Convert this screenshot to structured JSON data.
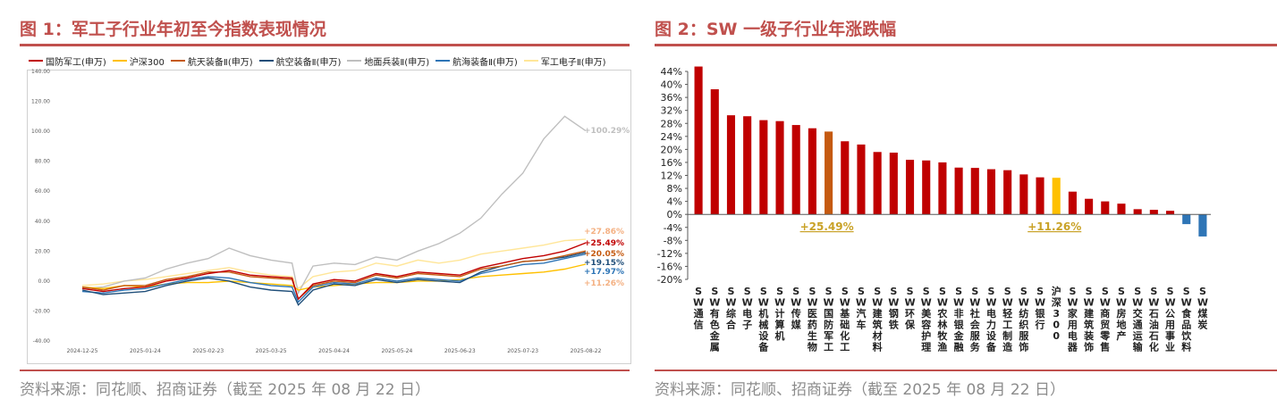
{
  "colors": {
    "accent": "#c0504d",
    "source_text": "#8c8c8c"
  },
  "left_panel": {
    "title": "图 1：军工子行业年初至今指数表现情况",
    "source": "资料来源：同花顺、招商证券（截至 2025 年 08 月 22 日）"
  },
  "right_panel": {
    "title": "图 2：SW 一级子行业年涨跌幅",
    "source": "资料来源：同花顺、招商证券（截至 2025 年 08 月 22 日）"
  },
  "chart_data": [
    {
      "type": "line",
      "title": "",
      "xlabel": "",
      "ylabel": "",
      "ylim": [
        -40,
        140
      ],
      "y_ticks": [
        -40,
        -20,
        0,
        20,
        40,
        60,
        80,
        100,
        120,
        140
      ],
      "y_tick_labels": [
        "-40.00",
        "-20.00",
        "0.00",
        "20.00",
        "40.00",
        "60.00",
        "80.00",
        "100.00",
        "120.00",
        "140.00"
      ],
      "x_ticks": [
        "2024-12-25",
        "2025-01-24",
        "2025-02-23",
        "2025-03-25",
        "2025-04-24",
        "2025-05-24",
        "2025-06-23",
        "2025-07-23",
        "2025-08-22"
      ],
      "legend_position": "top",
      "x": [
        "2024-12-25",
        "2025-01-04",
        "2025-01-14",
        "2025-01-24",
        "2025-02-03",
        "2025-02-13",
        "2025-02-23",
        "2025-03-05",
        "2025-03-15",
        "2025-03-25",
        "2025-04-04",
        "2025-04-07",
        "2025-04-14",
        "2025-04-24",
        "2025-05-04",
        "2025-05-14",
        "2025-05-24",
        "2025-06-03",
        "2025-06-13",
        "2025-06-23",
        "2025-07-03",
        "2025-07-13",
        "2025-07-23",
        "2025-08-02",
        "2025-08-12",
        "2025-08-22"
      ],
      "series": [
        {
          "name": "国防军工(申万)",
          "color": "#c00000",
          "end_label": "+25.49%",
          "values": [
            -5,
            -7,
            -5,
            -4,
            0,
            2,
            5,
            7,
            4,
            3,
            2,
            -12,
            -2,
            1,
            0,
            5,
            3,
            6,
            5,
            4,
            9,
            12,
            15,
            17,
            20,
            25.49
          ]
        },
        {
          "name": "沪深300",
          "color": "#ffc000",
          "end_label": "+11.26%",
          "values": [
            -4,
            -5,
            -3,
            -4,
            -2,
            -1,
            -1,
            0,
            -1,
            -2,
            -3,
            -6,
            -4,
            -3,
            -2,
            -1,
            -1,
            0,
            0,
            1,
            3,
            4,
            5,
            6,
            8,
            11.26
          ]
        },
        {
          "name": "航天装备Ⅱ(申万)",
          "color": "#c55a11",
          "end_label": "+20.05%",
          "values": [
            -4,
            -6,
            -3,
            -3,
            1,
            3,
            6,
            6,
            3,
            2,
            1,
            -12,
            -3,
            0,
            -1,
            4,
            2,
            5,
            4,
            3,
            8,
            10,
            13,
            14,
            17,
            20.05
          ]
        },
        {
          "name": "航空装备Ⅱ(申万)",
          "color": "#1f4e79",
          "end_label": "+19.15%",
          "values": [
            -6,
            -9,
            -8,
            -7,
            -3,
            0,
            2,
            0,
            -4,
            -6,
            -7,
            -16,
            -6,
            -2,
            -3,
            1,
            -1,
            1,
            0,
            -1,
            6,
            10,
            13,
            14,
            16,
            19.15
          ]
        },
        {
          "name": "地面兵装Ⅱ(申万)",
          "color": "#bfbfbf",
          "end_label": "+100.29%",
          "values": [
            -5,
            -4,
            0,
            2,
            8,
            12,
            15,
            22,
            17,
            14,
            12,
            -8,
            10,
            12,
            11,
            16,
            14,
            20,
            25,
            32,
            42,
            58,
            72,
            95,
            110,
            100.29
          ]
        },
        {
          "name": "航海装备Ⅱ(申万)",
          "color": "#2e75b6",
          "end_label": "+17.97%",
          "values": [
            -7,
            -8,
            -6,
            -5,
            -2,
            1,
            3,
            2,
            -1,
            -3,
            -4,
            -14,
            -4,
            -1,
            -2,
            2,
            0,
            2,
            1,
            0,
            5,
            8,
            11,
            12,
            15,
            17.97
          ]
        },
        {
          "name": "军工电子Ⅱ(申万)",
          "color": "#ffe699",
          "end_label": "+27.86%",
          "values": [
            -3,
            -2,
            0,
            1,
            3,
            5,
            7,
            9,
            6,
            4,
            3,
            -5,
            3,
            6,
            7,
            12,
            10,
            14,
            12,
            14,
            18,
            20,
            22,
            24,
            27,
            27.86
          ]
        }
      ]
    },
    {
      "type": "bar",
      "title": "",
      "xlabel": "",
      "ylabel": "",
      "ylim": [
        -20,
        44
      ],
      "y_ticks": [
        -20,
        -16,
        -12,
        -8,
        -4,
        0,
        4,
        8,
        12,
        16,
        20,
        24,
        28,
        32,
        36,
        40,
        44
      ],
      "y_tick_labels": [
        "-20%",
        "-16%",
        "-12%",
        "-8%",
        "-4%",
        "0%",
        "4%",
        "8%",
        "12%",
        "16%",
        "20%",
        "24%",
        "28%",
        "32%",
        "36%",
        "40%",
        "44%"
      ],
      "categories": [
        "SW通信",
        "SW有色金属",
        "SW综合",
        "SW电子",
        "SW机械设备",
        "SW计算机",
        "SW传媒",
        "SW医药生物",
        "SW国防军工",
        "SW基础化工",
        "SW汽车",
        "SW建筑材料",
        "SW钢铁",
        "SW环保",
        "SW美容护理",
        "SW农林牧渔",
        "SW非银金融",
        "SW社会服务",
        "SW电力设备",
        "SW轻工制造",
        "SW纺织服饰",
        "SW银行",
        "沪深300",
        "SW家用电器",
        "SW建筑装饰",
        "SW商贸零售",
        "SW房地产",
        "SW交通运输",
        "SW石油石化",
        "SW公用事业",
        "SW食品饮料",
        "SW煤炭"
      ],
      "values": [
        45.5,
        38.5,
        30.5,
        30.2,
        29.0,
        28.7,
        27.5,
        26.5,
        25.49,
        22.5,
        21.5,
        19.2,
        19.0,
        16.8,
        16.6,
        16.0,
        14.4,
        14.3,
        13.9,
        13.6,
        12.3,
        11.4,
        11.26,
        7.0,
        4.8,
        4.0,
        3.3,
        1.6,
        1.4,
        1.1,
        -3.0,
        -6.8
      ],
      "bar_colors": {
        "default": "#c00000",
        "highlight_defense": "#c55a11",
        "highlight_index": "#ffc000",
        "negative": "#2e75b6"
      },
      "annotations": [
        {
          "category": "SW国防军工",
          "text": "+25.49%"
        },
        {
          "category": "沪深300",
          "text": "+11.26%"
        }
      ]
    }
  ]
}
